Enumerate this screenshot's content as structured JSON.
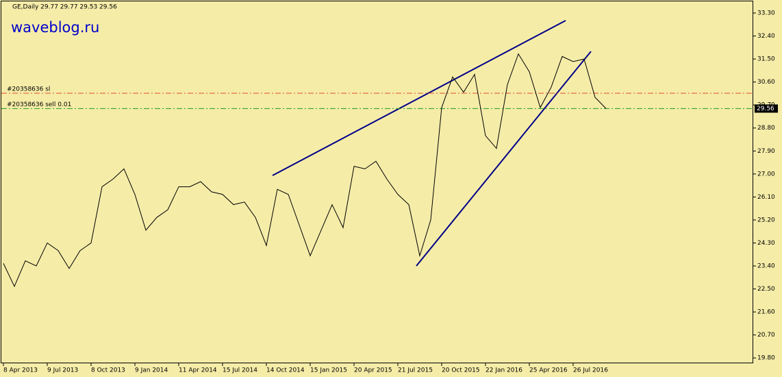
{
  "chart_data": {
    "type": "line",
    "title": "GE,Daily  29.77 29.77 29.53 29.56",
    "watermark": "waveblog.ru",
    "color": "#000000",
    "categories": [
      "8 Apr 2013",
      null,
      null,
      null,
      "9 Jul 2013",
      null,
      null,
      null,
      "8 Oct 2013",
      null,
      null,
      null,
      "9 Jan 2014",
      null,
      null,
      null,
      "11 Apr 2014",
      null,
      null,
      null,
      "15 Jul 2014",
      null,
      null,
      null,
      "14 Oct 2014",
      null,
      null,
      null,
      "15 Jan 2015",
      null,
      null,
      null,
      "20 Apr 2015",
      null,
      null,
      null,
      "21 Jul 2015",
      null,
      null,
      null,
      "20 Oct 2015",
      null,
      null,
      null,
      "22 Jan 2016",
      null,
      null,
      null,
      "25 Apr 2016",
      null,
      null,
      null,
      "26 Jul 2016",
      null,
      null,
      null
    ],
    "values": [
      23.5,
      22.6,
      23.6,
      23.4,
      24.3,
      24.0,
      23.3,
      24.0,
      24.3,
      26.5,
      26.8,
      27.2,
      26.2,
      24.8,
      25.3,
      25.6,
      26.5,
      26.5,
      26.7,
      26.3,
      26.2,
      25.8,
      25.9,
      25.3,
      24.2,
      26.4,
      26.2,
      25.0,
      23.8,
      24.8,
      25.8,
      24.9,
      27.3,
      27.2,
      27.5,
      26.8,
      26.2,
      25.8,
      23.8,
      25.2,
      29.6,
      30.8,
      30.2,
      30.9,
      28.5,
      28.0,
      30.5,
      31.7,
      31.0,
      29.6,
      30.4,
      31.6,
      31.4,
      31.5,
      30.0,
      29.56
    ],
    "ylim": [
      19.59,
      33.81
    ],
    "yticks": [
      {
        "value": 19.8,
        "label": "19.80"
      },
      {
        "value": 20.7,
        "label": "20.70"
      },
      {
        "value": 21.6,
        "label": "21.60"
      },
      {
        "value": 22.5,
        "label": "22.50"
      },
      {
        "value": 23.4,
        "label": "23.40"
      },
      {
        "value": 24.3,
        "label": "24.30"
      },
      {
        "value": 25.2,
        "label": "25.20"
      },
      {
        "value": 26.1,
        "label": "26.10"
      },
      {
        "value": 27.0,
        "label": "27.00"
      },
      {
        "value": 27.9,
        "label": "27.90"
      },
      {
        "value": 28.8,
        "label": "28.80"
      },
      {
        "value": 29.7,
        "label": "29.70"
      },
      {
        "value": 30.6,
        "label": "30.60"
      },
      {
        "value": 31.5,
        "label": "31.50"
      },
      {
        "value": 32.4,
        "label": "32.40"
      },
      {
        "value": 33.3,
        "label": "33.30"
      }
    ],
    "levels": [
      {
        "label": "#20358636 sl",
        "value": 30.16,
        "color": "#e0502a"
      },
      {
        "label": "#20358636 sell 0.01",
        "value": 29.56,
        "color": "#1f9a1f"
      }
    ],
    "last_price": {
      "value": 29.56,
      "label": "29.56"
    }
  }
}
